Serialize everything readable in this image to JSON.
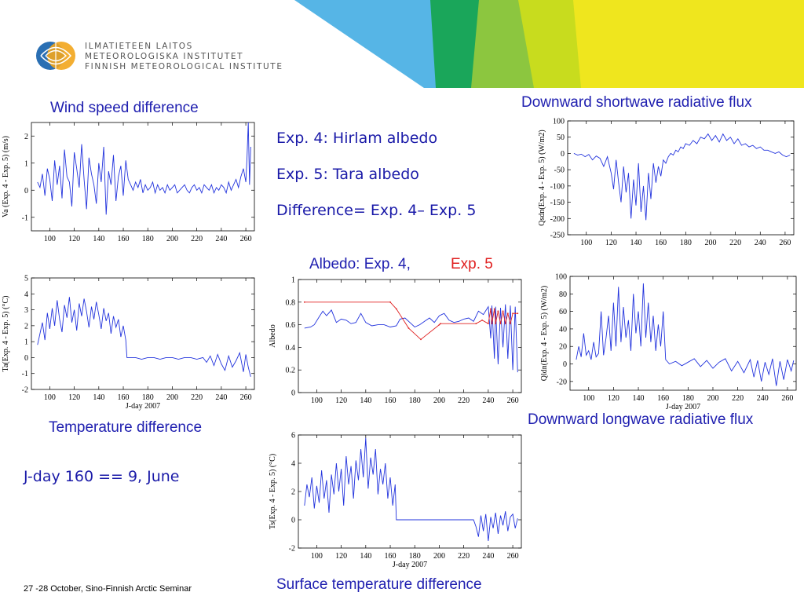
{
  "header": {
    "logo_lines": [
      "ILMATIETEEN LAITOS",
      "METEOROLOGISKA INSTITUTET",
      "FINNISH METEOROLOGICAL INSTITUTE"
    ]
  },
  "notes": {
    "exp4": "Exp. 4: Hirlam albedo",
    "exp5": "Exp. 5: Tara albedo",
    "difference": "Difference= Exp. 4– Exp. 5",
    "jday": "J-day 160 == 9, June"
  },
  "captions": {
    "wind": "Wind speed difference",
    "shortwave": "Downward shortwave radiative flux",
    "albedo_a": "Albedo: Exp. 4,",
    "albedo_b": "Exp. 5",
    "temperature": "Temperature difference",
    "longwave": "Downward longwave radiative flux",
    "surface": "Surface temperature difference"
  },
  "footer": {
    "text": "27 -28 October, Sino-Finnish Arctic Seminar"
  },
  "colors": {
    "series": "#2233dd",
    "exp5": "#e02020",
    "caption": "#2020b0"
  },
  "chart_data": [
    {
      "id": "wind",
      "type": "line",
      "ylabel": "Va (Exp. 4 - Exp. 5) (m/s)",
      "xlabel": "",
      "xlim": [
        85,
        267
      ],
      "ylim": [
        -1.5,
        2.5
      ],
      "xticks": [
        100,
        120,
        140,
        160,
        180,
        200,
        220,
        240,
        260
      ],
      "yticks": [
        -1,
        0,
        1,
        2
      ],
      "series": [
        {
          "color": "#2233dd",
          "x": [
            90,
            92,
            94,
            96,
            98,
            100,
            102,
            104,
            106,
            108,
            110,
            112,
            114,
            116,
            118,
            120,
            122,
            124,
            126,
            128,
            130,
            132,
            134,
            136,
            138,
            140,
            142,
            144,
            146,
            148,
            150,
            152,
            154,
            156,
            158,
            160,
            162,
            164,
            166,
            168,
            170,
            172,
            174,
            176,
            178,
            180,
            182,
            184,
            186,
            188,
            190,
            192,
            194,
            196,
            198,
            200,
            202,
            204,
            206,
            208,
            210,
            212,
            214,
            216,
            218,
            220,
            222,
            224,
            226,
            228,
            230,
            232,
            234,
            236,
            238,
            240,
            242,
            244,
            246,
            248,
            250,
            252,
            254,
            256,
            258,
            260,
            261,
            262,
            263,
            264
          ],
          "y": [
            0.3,
            0.1,
            0.6,
            -0.2,
            0.8,
            0.4,
            -0.4,
            1.1,
            0.2,
            0.9,
            -0.3,
            1.5,
            0.5,
            0.3,
            -0.6,
            1.4,
            0.8,
            0.1,
            1.7,
            0.4,
            -0.7,
            1.2,
            0.6,
            0.2,
            -0.5,
            1.0,
            0.3,
            1.6,
            -0.9,
            0.7,
            0.2,
            1.3,
            -0.4,
            0.5,
            0.9,
            -0.2,
            1.1,
            0.4,
            0.2,
            0.0,
            0.3,
            0.1,
            0.4,
            -0.1,
            0.2,
            0.0,
            0.1,
            0.3,
            -0.1,
            0.2,
            0.0,
            0.1,
            -0.1,
            0.2,
            0.0,
            0.1,
            0.2,
            -0.1,
            0.0,
            0.1,
            0.2,
            0.0,
            -0.1,
            0.1,
            0.2,
            0.0,
            0.1,
            -0.1,
            0.2,
            0.1,
            0.0,
            0.2,
            -0.1,
            0.1,
            0.0,
            0.2,
            0.1,
            -0.1,
            0.3,
            0.0,
            0.2,
            0.4,
            0.1,
            0.5,
            0.8,
            0.3,
            1.2,
            2.5,
            0.2,
            1.6
          ]
        }
      ]
    },
    {
      "id": "shortwave",
      "type": "line",
      "ylabel": "Qsdn(Exp. 4 - Exp. 5) (W/m2)",
      "xlabel": "",
      "xlim": [
        85,
        267
      ],
      "ylim": [
        -250,
        100
      ],
      "xticks": [
        100,
        120,
        140,
        160,
        180,
        200,
        220,
        240,
        260
      ],
      "yticks": [
        -250,
        -200,
        -150,
        -100,
        -50,
        0,
        50,
        100
      ],
      "series": [
        {
          "color": "#2233dd",
          "x": [
            90,
            93,
            96,
            99,
            102,
            105,
            108,
            111,
            114,
            117,
            120,
            122,
            124,
            126,
            128,
            130,
            132,
            134,
            136,
            138,
            140,
            142,
            144,
            146,
            148,
            150,
            152,
            154,
            156,
            158,
            160,
            162,
            164,
            166,
            168,
            170,
            172,
            174,
            176,
            178,
            180,
            183,
            186,
            189,
            192,
            195,
            198,
            201,
            204,
            207,
            210,
            213,
            216,
            219,
            222,
            225,
            228,
            231,
            234,
            237,
            240,
            243,
            246,
            249,
            252,
            255,
            258,
            261,
            264
          ],
          "y": [
            0,
            -5,
            -2,
            -10,
            -3,
            -20,
            -8,
            -15,
            -40,
            -10,
            -60,
            -110,
            -20,
            -90,
            -150,
            -40,
            -120,
            -60,
            -200,
            -80,
            -160,
            -30,
            -180,
            -100,
            -205,
            -60,
            -140,
            -30,
            -90,
            -40,
            -70,
            -20,
            -30,
            -10,
            0,
            -5,
            10,
            5,
            20,
            15,
            30,
            25,
            40,
            30,
            50,
            45,
            60,
            40,
            55,
            35,
            60,
            40,
            50,
            30,
            45,
            25,
            30,
            20,
            25,
            15,
            20,
            10,
            10,
            5,
            0,
            5,
            -5,
            -10,
            -5
          ]
        }
      ]
    },
    {
      "id": "temperature",
      "type": "line",
      "ylabel": "Ta(Exp. 4 - Exp. 5) (°C)",
      "xlabel": "J-day 2007",
      "xlim": [
        85,
        267
      ],
      "ylim": [
        -2,
        5
      ],
      "xticks": [
        100,
        120,
        140,
        160,
        180,
        200,
        220,
        240,
        260
      ],
      "yticks": [
        -2,
        -1,
        0,
        1,
        2,
        3,
        4,
        5
      ],
      "series": [
        {
          "color": "#2233dd",
          "x": [
            90,
            92,
            94,
            96,
            98,
            100,
            102,
            104,
            106,
            108,
            110,
            112,
            114,
            116,
            118,
            120,
            122,
            124,
            126,
            128,
            130,
            132,
            134,
            136,
            138,
            140,
            142,
            144,
            146,
            148,
            150,
            152,
            154,
            156,
            158,
            160,
            162,
            163,
            166,
            170,
            175,
            180,
            185,
            190,
            195,
            200,
            205,
            210,
            215,
            220,
            225,
            228,
            231,
            234,
            237,
            240,
            243,
            246,
            249,
            252,
            255,
            258,
            260,
            262,
            264
          ],
          "y": [
            0.8,
            1.5,
            2.2,
            1.1,
            2.8,
            1.8,
            3.1,
            2.0,
            3.6,
            2.4,
            1.6,
            3.3,
            2.5,
            3.8,
            2.2,
            3.0,
            1.7,
            3.4,
            2.6,
            3.7,
            2.9,
            1.9,
            3.2,
            2.4,
            3.5,
            2.7,
            1.8,
            3.1,
            2.3,
            2.8,
            1.5,
            2.6,
            1.9,
            2.4,
            1.3,
            2.0,
            1.1,
            0.0,
            0.0,
            0.0,
            -0.1,
            0.0,
            0.0,
            -0.1,
            0.0,
            0.0,
            -0.1,
            0.0,
            0.0,
            -0.1,
            0.0,
            -0.3,
            0.1,
            -0.5,
            0.2,
            -0.4,
            -0.8,
            0.1,
            -0.6,
            -0.2,
            0.3,
            -0.9,
            0.2,
            -0.6,
            -1.2
          ]
        }
      ]
    },
    {
      "id": "albedo",
      "type": "line",
      "ylabel": "Albedo",
      "xlabel": "",
      "xlim": [
        85,
        267
      ],
      "ylim": [
        0,
        1
      ],
      "xticks": [
        100,
        120,
        140,
        160,
        180,
        200,
        220,
        240,
        260
      ],
      "yticks": [
        0,
        0.2,
        0.4,
        0.6,
        0.8,
        1
      ],
      "series": [
        {
          "color": "#2233dd",
          "x": [
            90,
            95,
            98,
            102,
            105,
            108,
            112,
            116,
            120,
            124,
            128,
            132,
            136,
            140,
            145,
            150,
            155,
            160,
            165,
            168,
            172,
            176,
            180,
            184,
            188,
            192,
            196,
            200,
            204,
            208,
            212,
            216,
            220,
            224,
            228,
            232,
            236,
            240,
            242,
            243,
            245,
            246,
            248,
            250,
            252,
            254,
            256,
            258,
            260,
            262,
            264
          ],
          "y": [
            0.57,
            0.58,
            0.6,
            0.67,
            0.72,
            0.68,
            0.73,
            0.62,
            0.65,
            0.64,
            0.61,
            0.62,
            0.7,
            0.62,
            0.59,
            0.6,
            0.6,
            0.58,
            0.59,
            0.65,
            0.66,
            0.62,
            0.58,
            0.6,
            0.63,
            0.66,
            0.62,
            0.68,
            0.7,
            0.64,
            0.62,
            0.63,
            0.65,
            0.66,
            0.63,
            0.72,
            0.69,
            0.76,
            0.48,
            0.77,
            0.3,
            0.76,
            0.25,
            0.75,
            0.4,
            0.78,
            0.3,
            0.77,
            0.2,
            0.76,
            0.18
          ]
        },
        {
          "color": "#e02020",
          "x": [
            90,
            160,
            165,
            175,
            185,
            200,
            201,
            230,
            235,
            240,
            242,
            243,
            245,
            246,
            248,
            250,
            252,
            254,
            256,
            258,
            260,
            262,
            264
          ],
          "y": [
            0.8,
            0.8,
            0.74,
            0.57,
            0.47,
            0.6,
            0.61,
            0.61,
            0.64,
            0.61,
            0.74,
            0.61,
            0.74,
            0.61,
            0.72,
            0.61,
            0.72,
            0.61,
            0.7,
            0.61,
            0.7,
            0.7,
            0.7
          ]
        }
      ]
    },
    {
      "id": "longwave",
      "type": "line",
      "ylabel": "Qldn(Exp. 4 - Exp. 5) (W/m2)",
      "xlabel": "J-day 2007",
      "xlim": [
        85,
        267
      ],
      "ylim": [
        -30,
        100
      ],
      "xticks": [
        100,
        120,
        140,
        160,
        180,
        200,
        220,
        240,
        260
      ],
      "yticks": [
        -20,
        0,
        20,
        40,
        60,
        80,
        100
      ],
      "series": [
        {
          "color": "#2233dd",
          "x": [
            90,
            92,
            94,
            96,
            98,
            100,
            102,
            104,
            106,
            108,
            110,
            112,
            114,
            116,
            118,
            120,
            122,
            124,
            126,
            128,
            130,
            132,
            134,
            136,
            138,
            140,
            142,
            144,
            146,
            148,
            150,
            152,
            154,
            156,
            158,
            160,
            162,
            165,
            170,
            175,
            180,
            185,
            190,
            195,
            200,
            205,
            210,
            215,
            220,
            225,
            230,
            233,
            236,
            239,
            242,
            245,
            248,
            251,
            254,
            257,
            260,
            263,
            265
          ],
          "y": [
            5,
            20,
            8,
            35,
            10,
            15,
            5,
            25,
            8,
            12,
            60,
            10,
            30,
            55,
            15,
            70,
            20,
            88,
            25,
            65,
            30,
            50,
            15,
            80,
            35,
            60,
            20,
            92,
            30,
            70,
            25,
            55,
            15,
            45,
            20,
            60,
            5,
            0,
            3,
            -2,
            2,
            6,
            -3,
            4,
            -5,
            2,
            6,
            -8,
            3,
            -10,
            5,
            -15,
            4,
            -20,
            2,
            -12,
            6,
            -25,
            3,
            -18,
            5,
            -8,
            4
          ]
        }
      ]
    },
    {
      "id": "surface",
      "type": "line",
      "ylabel": "Ts(Exp. 4 - Exp. 5) (°C)",
      "xlabel": "J-day 2007",
      "xlim": [
        85,
        267
      ],
      "ylim": [
        -2,
        6
      ],
      "xticks": [
        100,
        120,
        140,
        160,
        180,
        200,
        220,
        240,
        260
      ],
      "yticks": [
        -2,
        0,
        2,
        4,
        6
      ],
      "series": [
        {
          "color": "#2233dd",
          "x": [
            90,
            92,
            94,
            96,
            98,
            100,
            102,
            104,
            106,
            108,
            110,
            112,
            114,
            116,
            118,
            120,
            122,
            124,
            126,
            128,
            130,
            132,
            134,
            136,
            138,
            140,
            142,
            144,
            146,
            148,
            150,
            152,
            154,
            156,
            158,
            160,
            162,
            164,
            165,
            170,
            180,
            190,
            200,
            210,
            220,
            228,
            230,
            232,
            234,
            236,
            238,
            240,
            242,
            244,
            246,
            248,
            250,
            252,
            254,
            256,
            258,
            260,
            262,
            264
          ],
          "y": [
            1.0,
            2.5,
            1.6,
            3.0,
            0.8,
            2.4,
            1.2,
            3.5,
            1.5,
            2.8,
            0.5,
            3.2,
            1.8,
            4.0,
            2.0,
            3.6,
            1.0,
            4.5,
            2.5,
            3.8,
            1.5,
            4.2,
            2.8,
            5.0,
            3.0,
            5.8,
            2.2,
            4.4,
            3.2,
            5.0,
            1.8,
            3.6,
            2.5,
            4.0,
            1.5,
            3.0,
            1.0,
            2.5,
            0.0,
            0.0,
            0.0,
            0.0,
            0.0,
            0.0,
            0.0,
            0.0,
            -0.5,
            -1.2,
            0.3,
            -0.8,
            0.4,
            -1.5,
            0.2,
            -0.6,
            0.5,
            -1.0,
            0.3,
            -0.4,
            0.6,
            -0.8,
            0.2,
            0.4,
            -0.6,
            0.1
          ]
        }
      ]
    }
  ]
}
